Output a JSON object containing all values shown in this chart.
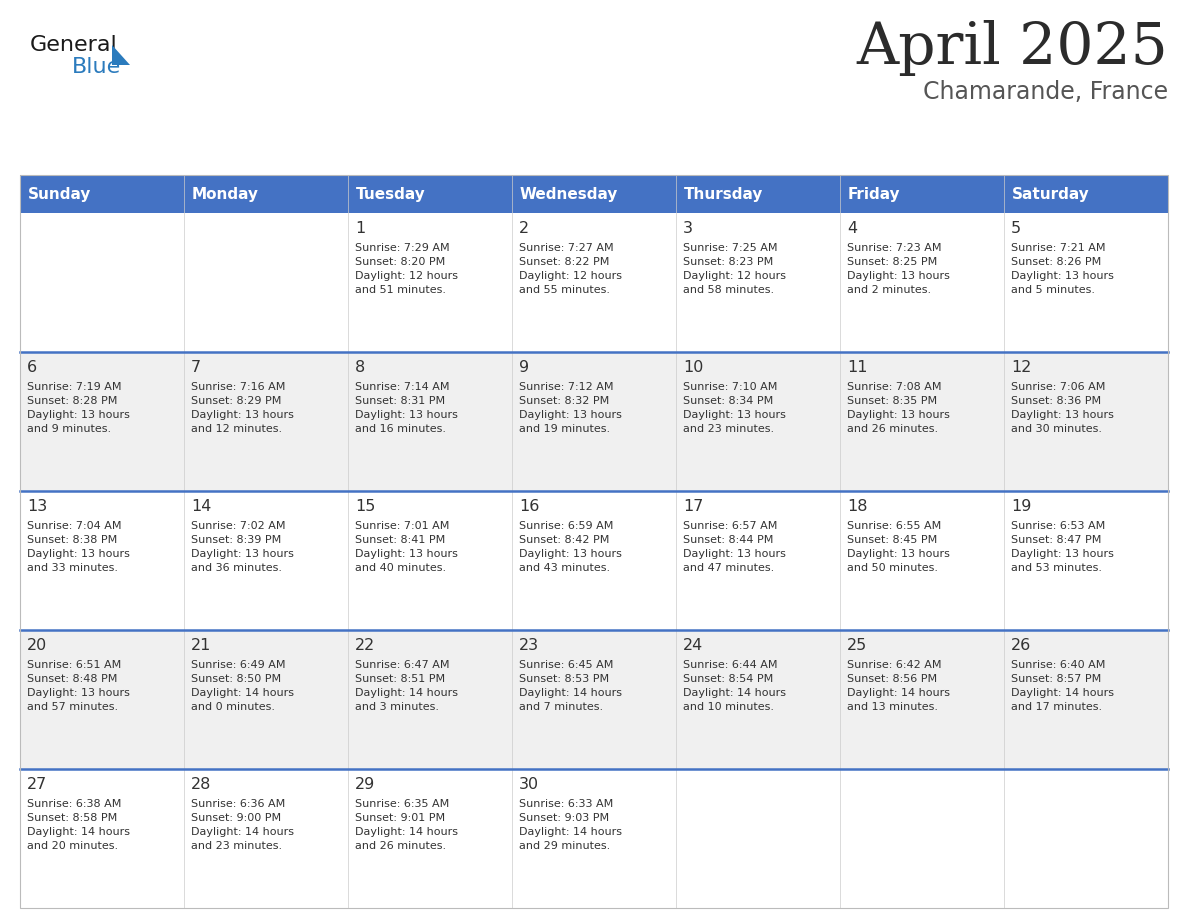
{
  "title": "April 2025",
  "subtitle": "Chamarande, France",
  "header_color": "#4472C4",
  "header_text_color": "#FFFFFF",
  "title_color": "#2B2B2B",
  "subtitle_color": "#555555",
  "cell_text_color": "#333333",
  "cell_bg_white": "#FFFFFF",
  "cell_bg_gray": "#F0F0F0",
  "divider_color": "#4472C4",
  "days_of_week": [
    "Sunday",
    "Monday",
    "Tuesday",
    "Wednesday",
    "Thursday",
    "Friday",
    "Saturday"
  ],
  "weeks": [
    [
      {
        "day": null,
        "info": null
      },
      {
        "day": null,
        "info": null
      },
      {
        "day": 1,
        "info": "Sunrise: 7:29 AM\nSunset: 8:20 PM\nDaylight: 12 hours\nand 51 minutes."
      },
      {
        "day": 2,
        "info": "Sunrise: 7:27 AM\nSunset: 8:22 PM\nDaylight: 12 hours\nand 55 minutes."
      },
      {
        "day": 3,
        "info": "Sunrise: 7:25 AM\nSunset: 8:23 PM\nDaylight: 12 hours\nand 58 minutes."
      },
      {
        "day": 4,
        "info": "Sunrise: 7:23 AM\nSunset: 8:25 PM\nDaylight: 13 hours\nand 2 minutes."
      },
      {
        "day": 5,
        "info": "Sunrise: 7:21 AM\nSunset: 8:26 PM\nDaylight: 13 hours\nand 5 minutes."
      }
    ],
    [
      {
        "day": 6,
        "info": "Sunrise: 7:19 AM\nSunset: 8:28 PM\nDaylight: 13 hours\nand 9 minutes."
      },
      {
        "day": 7,
        "info": "Sunrise: 7:16 AM\nSunset: 8:29 PM\nDaylight: 13 hours\nand 12 minutes."
      },
      {
        "day": 8,
        "info": "Sunrise: 7:14 AM\nSunset: 8:31 PM\nDaylight: 13 hours\nand 16 minutes."
      },
      {
        "day": 9,
        "info": "Sunrise: 7:12 AM\nSunset: 8:32 PM\nDaylight: 13 hours\nand 19 minutes."
      },
      {
        "day": 10,
        "info": "Sunrise: 7:10 AM\nSunset: 8:34 PM\nDaylight: 13 hours\nand 23 minutes."
      },
      {
        "day": 11,
        "info": "Sunrise: 7:08 AM\nSunset: 8:35 PM\nDaylight: 13 hours\nand 26 minutes."
      },
      {
        "day": 12,
        "info": "Sunrise: 7:06 AM\nSunset: 8:36 PM\nDaylight: 13 hours\nand 30 minutes."
      }
    ],
    [
      {
        "day": 13,
        "info": "Sunrise: 7:04 AM\nSunset: 8:38 PM\nDaylight: 13 hours\nand 33 minutes."
      },
      {
        "day": 14,
        "info": "Sunrise: 7:02 AM\nSunset: 8:39 PM\nDaylight: 13 hours\nand 36 minutes."
      },
      {
        "day": 15,
        "info": "Sunrise: 7:01 AM\nSunset: 8:41 PM\nDaylight: 13 hours\nand 40 minutes."
      },
      {
        "day": 16,
        "info": "Sunrise: 6:59 AM\nSunset: 8:42 PM\nDaylight: 13 hours\nand 43 minutes."
      },
      {
        "day": 17,
        "info": "Sunrise: 6:57 AM\nSunset: 8:44 PM\nDaylight: 13 hours\nand 47 minutes."
      },
      {
        "day": 18,
        "info": "Sunrise: 6:55 AM\nSunset: 8:45 PM\nDaylight: 13 hours\nand 50 minutes."
      },
      {
        "day": 19,
        "info": "Sunrise: 6:53 AM\nSunset: 8:47 PM\nDaylight: 13 hours\nand 53 minutes."
      }
    ],
    [
      {
        "day": 20,
        "info": "Sunrise: 6:51 AM\nSunset: 8:48 PM\nDaylight: 13 hours\nand 57 minutes."
      },
      {
        "day": 21,
        "info": "Sunrise: 6:49 AM\nSunset: 8:50 PM\nDaylight: 14 hours\nand 0 minutes."
      },
      {
        "day": 22,
        "info": "Sunrise: 6:47 AM\nSunset: 8:51 PM\nDaylight: 14 hours\nand 3 minutes."
      },
      {
        "day": 23,
        "info": "Sunrise: 6:45 AM\nSunset: 8:53 PM\nDaylight: 14 hours\nand 7 minutes."
      },
      {
        "day": 24,
        "info": "Sunrise: 6:44 AM\nSunset: 8:54 PM\nDaylight: 14 hours\nand 10 minutes."
      },
      {
        "day": 25,
        "info": "Sunrise: 6:42 AM\nSunset: 8:56 PM\nDaylight: 14 hours\nand 13 minutes."
      },
      {
        "day": 26,
        "info": "Sunrise: 6:40 AM\nSunset: 8:57 PM\nDaylight: 14 hours\nand 17 minutes."
      }
    ],
    [
      {
        "day": 27,
        "info": "Sunrise: 6:38 AM\nSunset: 8:58 PM\nDaylight: 14 hours\nand 20 minutes."
      },
      {
        "day": 28,
        "info": "Sunrise: 6:36 AM\nSunset: 9:00 PM\nDaylight: 14 hours\nand 23 minutes."
      },
      {
        "day": 29,
        "info": "Sunrise: 6:35 AM\nSunset: 9:01 PM\nDaylight: 14 hours\nand 26 minutes."
      },
      {
        "day": 30,
        "info": "Sunrise: 6:33 AM\nSunset: 9:03 PM\nDaylight: 14 hours\nand 29 minutes."
      },
      {
        "day": null,
        "info": null
      },
      {
        "day": null,
        "info": null
      },
      {
        "day": null,
        "info": null
      }
    ]
  ],
  "logo_text_general": "General",
  "logo_text_blue": "Blue",
  "logo_color_general": "#1A1A1A",
  "logo_color_blue": "#2B7BBD",
  "logo_triangle_color": "#2B7BBD"
}
